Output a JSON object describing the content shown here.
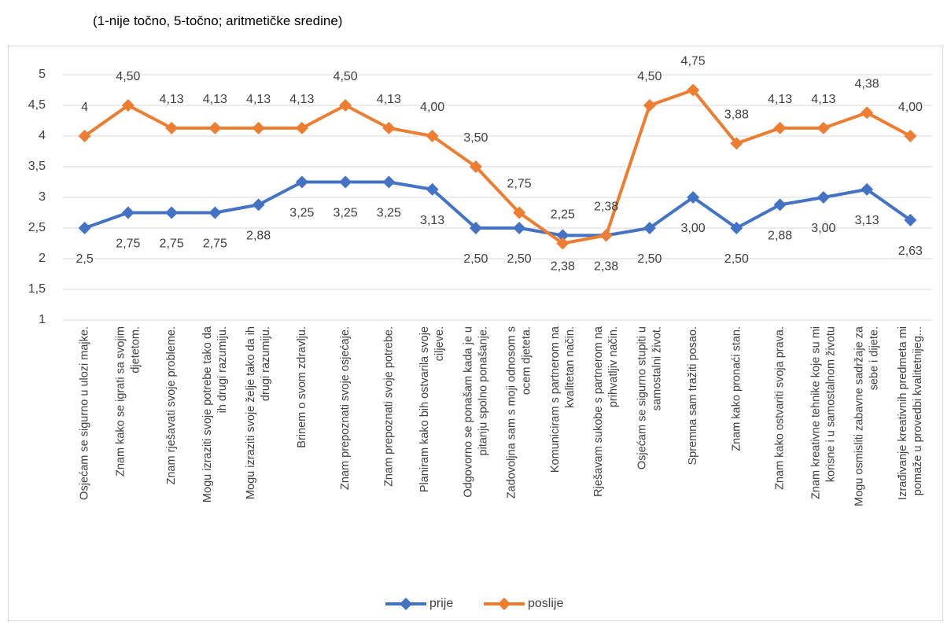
{
  "chart_data": {
    "type": "line",
    "subtitle": "(1-nije točno, 5-točno; aritmetičke sredine)",
    "categories": [
      "Osjećam se sigurno u ulozi majke.",
      "Znam kako se igrati sa svojim\ndjetetom.",
      "Znam rješavati svoje probleme.",
      "Mogu izraziti svoje potrebe tako da\nih drugi razumiju.",
      "Mogu izraziti svoje želje tako da ih\ndrugi razumiju.",
      "Brinem o svom zdravlju.",
      "Znam prepoznati svoje osjećaje.",
      "Znam prepoznati svoje potrebe.",
      "Planiram kako bih ostvarila svoje\nciljeve.",
      "Odgovorno se ponašam kada je u\npitanju spolno ponašanje.",
      "Zadovoljna sam s moji odnosom s\nocem djeteta.",
      "Komuniciram s partnerom na\nkvalitetan način.",
      "Rješavam sukobe s partnerom na\nprihvatljiv način.",
      "Osjećam se sigurno stupiti u\nsamostalni život.",
      "Spremna sam tražiti posao.",
      "Znam kako pronaći stan.",
      "Znam kako ostvariti svoja prava.",
      "Znam kreativne tehnike koje su mi\nkorisne i u samostalnom životu",
      "Mogu osmisliti zabavne sadržaje za\nsebe i dijete.",
      "Izrađivanje kreativnih predmeta mi\npomaže u provedbi kvalitetnijeg..."
    ],
    "series": [
      {
        "name": "prije",
        "color": "#4472c4",
        "values": [
          2.5,
          2.75,
          2.75,
          2.75,
          2.88,
          3.25,
          3.25,
          3.25,
          3.13,
          2.5,
          2.5,
          2.38,
          2.38,
          2.5,
          3.0,
          2.5,
          2.88,
          3.0,
          3.13,
          2.63
        ],
        "value_labels": [
          "2,5",
          "2,75",
          "2,75",
          "2,75",
          "2,88",
          "3,25",
          "3,25",
          "3,25",
          "3,13",
          "2,50",
          "2,50",
          "2,38",
          "2,38",
          "2,50",
          "3,00",
          "2,50",
          "2,88",
          "3,00",
          "3,13",
          "2,63"
        ]
      },
      {
        "name": "poslije",
        "color": "#ed7d31",
        "values": [
          4,
          4.5,
          4.13,
          4.13,
          4.13,
          4.13,
          4.5,
          4.13,
          4.0,
          3.5,
          2.75,
          2.25,
          2.38,
          4.5,
          4.75,
          3.88,
          4.13,
          4.13,
          4.38,
          4.0
        ],
        "value_labels": [
          "4",
          "4,50",
          "4,13",
          "4,13",
          "4,13",
          "4,13",
          "4,50",
          "4,13",
          "4,00",
          "3,50",
          "2,75",
          "2,25",
          "2,38",
          "4,50",
          "4,75",
          "3,88",
          "4,13",
          "4,13",
          "4,38",
          "4,00"
        ]
      }
    ],
    "ylim": [
      1,
      5
    ],
    "yticks": [
      1,
      {
        "value": 1.5,
        "label": "1,5"
      },
      2,
      {
        "value": 2.5,
        "label": "2,5"
      },
      3,
      {
        "value": 3.5,
        "label": "3,5"
      },
      4,
      {
        "value": 4.5,
        "label": "4,5"
      },
      5
    ],
    "grid": true,
    "legend": "bottom"
  }
}
